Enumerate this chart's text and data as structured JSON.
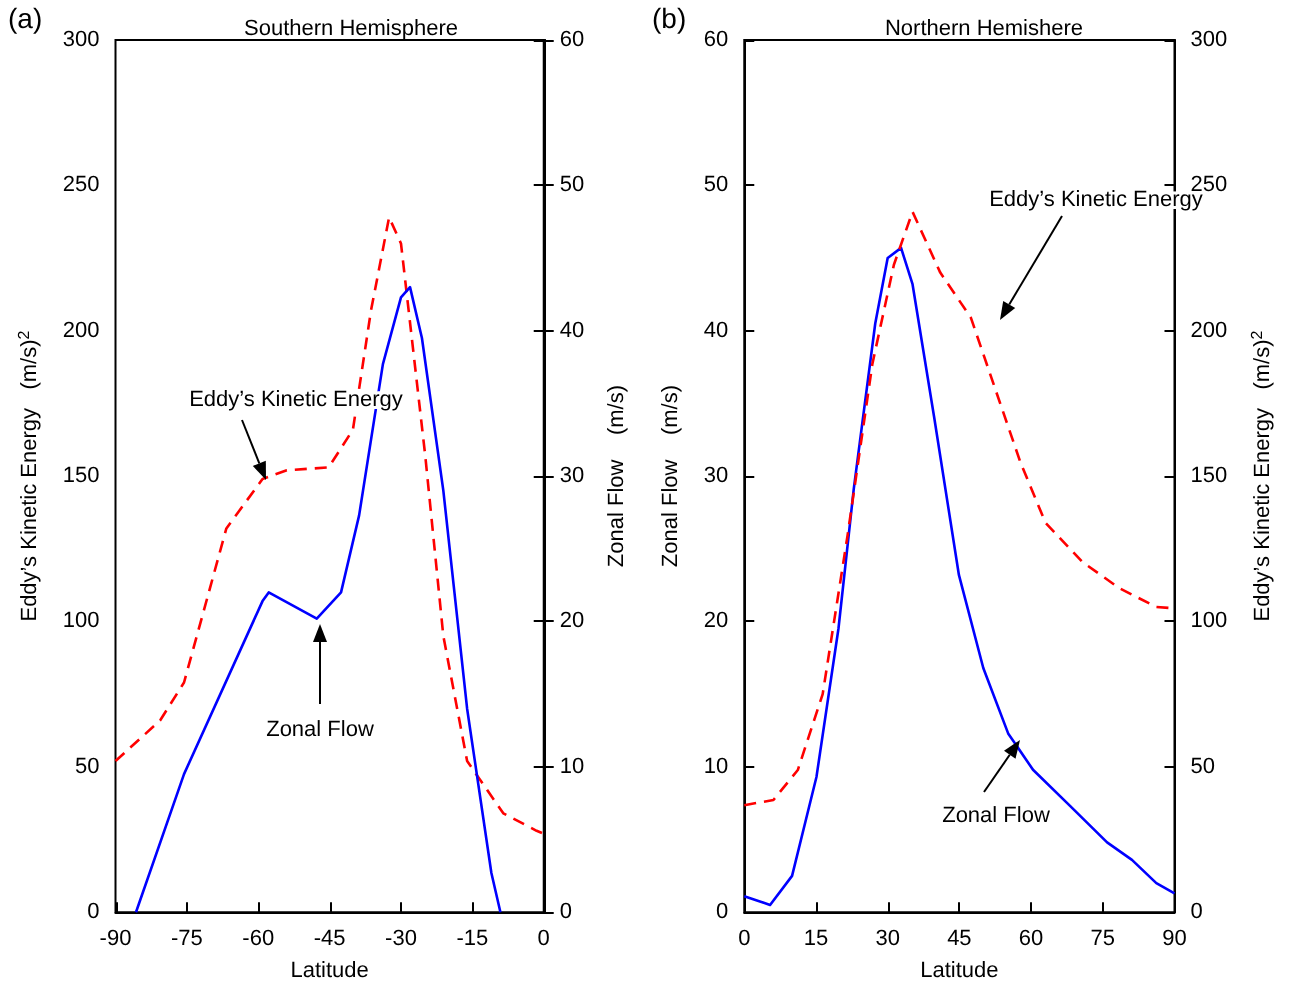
{
  "chart_data": [
    {
      "type": "line",
      "title": "Southern Hemisphere",
      "xlabel": "Latitude",
      "ylabel": "Eddy’s Kinetic Energy   (m/s)$^{2}$",
      "y2label": "Zonal Flow    (m/s)",
      "xlim": [
        -90,
        0
      ],
      "xticks": [
        -90,
        -75,
        -60,
        -45,
        -30,
        -15,
        0
      ],
      "ylim": [
        0,
        300
      ],
      "yticks": [
        0,
        50,
        100,
        150,
        200,
        250,
        300
      ],
      "y2lim": [
        0,
        60
      ],
      "y2ticks": [
        0,
        10,
        20,
        30,
        40,
        50,
        60
      ],
      "annotations": [
        "(a)",
        "Eddy’s Kinetic Energy",
        "Zonal Flow"
      ],
      "series": [
        {
          "color": "#ff0000",
          "line_style": "dashed",
          "x": [
            -90,
            -80.6,
            -75.6,
            -66.7,
            -59.1,
            -54,
            -45.2,
            -40.1,
            -36.3,
            -32.5,
            -30,
            -24.9,
            -21.1,
            -16.1,
            -8.5,
            -1.5,
            0
          ],
          "values": [
            52,
            66,
            79,
            132,
            149,
            152,
            153,
            166,
            207,
            239,
            230,
            157,
            95,
            52,
            34,
            28,
            27
          ]
        },
        {
          "color": "#0000ff",
          "line_style": "solid",
          "axis": "y2",
          "x": [
            -85.7,
            -75.6,
            -59.1,
            -57.8,
            -47.7,
            -42.6,
            -38.8,
            -33.8,
            -30,
            -28.1,
            -25.6,
            -21.1,
            -16.1,
            -11,
            -9.1
          ],
          "values": [
            0,
            9.5,
            21.4,
            22,
            20.2,
            22,
            27.3,
            37.7,
            42.3,
            43,
            39.5,
            29,
            14,
            2.7,
            0
          ]
        }
      ]
    },
    {
      "type": "line",
      "title": "Northern Hemishere",
      "xlabel": "Latitude",
      "ylabel": "Zonal Flow    (m/s)",
      "y2label": "Eddy’s Kinetic Energy   (m/s)$^{2}$",
      "xlim": [
        0,
        90
      ],
      "xticks": [
        0,
        15,
        30,
        45,
        60,
        75,
        90
      ],
      "ylim": [
        0,
        60
      ],
      "yticks": [
        0,
        10,
        20,
        30,
        40,
        50,
        60
      ],
      "y2lim": [
        0,
        300
      ],
      "y2ticks": [
        0,
        50,
        100,
        150,
        200,
        250,
        300
      ],
      "annotations": [
        "(b)",
        "Eddy’s Kinetic Energy",
        "Zonal Flow"
      ],
      "series": [
        {
          "color": "#0000ff",
          "line_style": "solid",
          "x": [
            0,
            5.4,
            10,
            15.1,
            19.7,
            22.9,
            27.4,
            30,
            32.8,
            35.2,
            39.7,
            44.9,
            50,
            55.2,
            60.4,
            68.2,
            75.9,
            81.1,
            86.2,
            90
          ],
          "values": [
            1.1,
            0.5,
            2.5,
            9.3,
            19.5,
            29.1,
            40.5,
            45,
            45.7,
            43.2,
            34.1,
            23.2,
            16.8,
            12.3,
            9.8,
            7.3,
            4.8,
            3.6,
            2,
            1.3
          ]
        },
        {
          "color": "#ff0000",
          "line_style": "dashed",
          "axis": "y2",
          "x": [
            0,
            6.1,
            11.2,
            16.4,
            21.6,
            26.8,
            31.3,
            35.2,
            41,
            47.4,
            52.6,
            57.8,
            63,
            70.7,
            78.5,
            86.2,
            90
          ],
          "values": [
            36.8,
            38.6,
            48.9,
            75,
            129.5,
            188.6,
            222.7,
            240.9,
            220,
            204.5,
            179.5,
            154.6,
            134,
            120.5,
            111.4,
            105,
            104.5
          ]
        }
      ]
    }
  ]
}
